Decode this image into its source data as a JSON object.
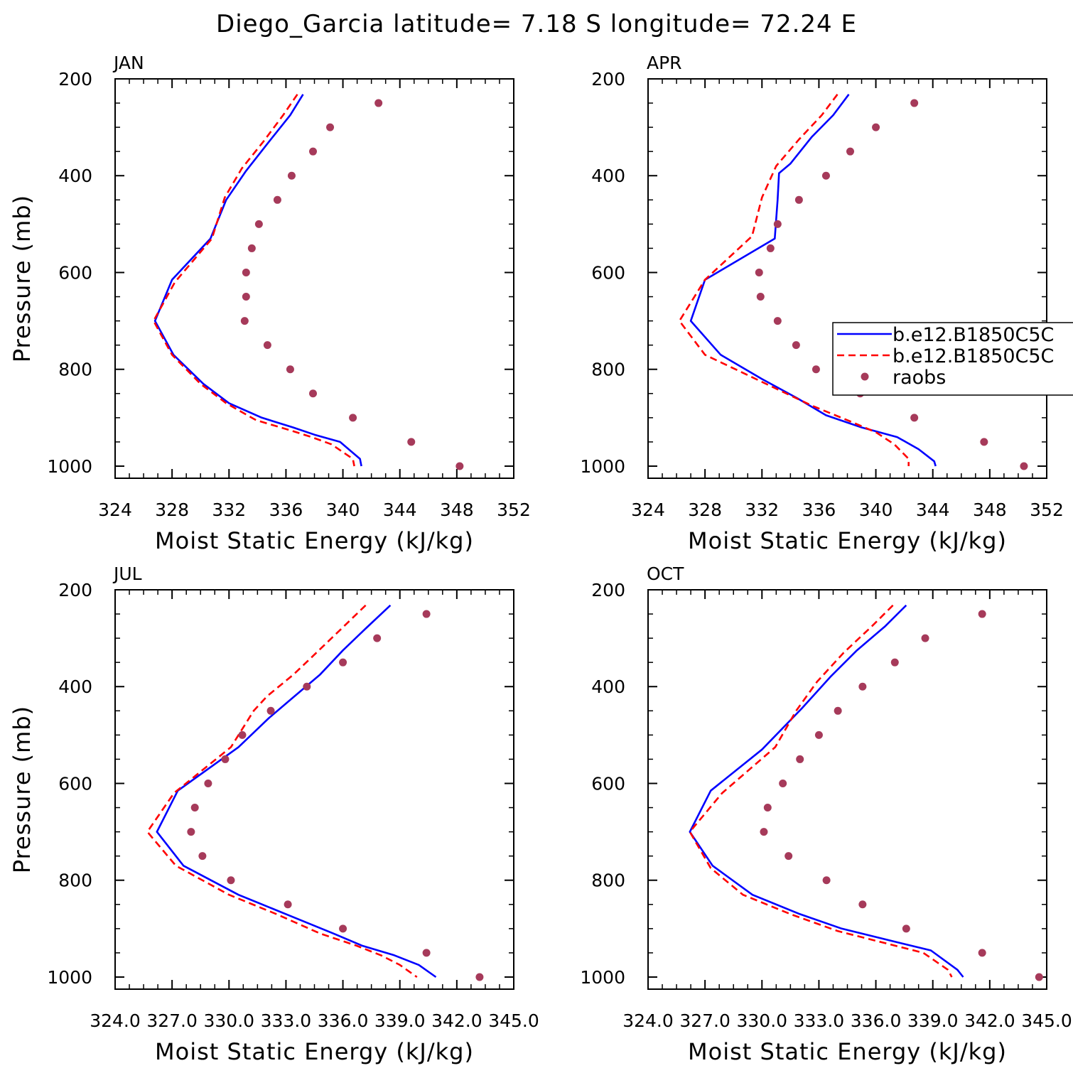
{
  "figure": {
    "title": "Diego_Garcia  latitude= 7.18 S longitude= 72.24 E"
  },
  "legend": {
    "entries": [
      {
        "label": "b.e12.B1850C5C",
        "style": "solid",
        "color": "#0000ff"
      },
      {
        "label": "b.e12.B1850C5C",
        "style": "dashed",
        "color": "#ff0000"
      },
      {
        "label": "raobs",
        "style": "marker",
        "color": "#a63a5a"
      }
    ]
  },
  "colors": {
    "model_solid": "#0000ff",
    "model_dashed": "#ff0000",
    "raobs": "#a63a5a"
  },
  "chart_data": [
    {
      "type": "line",
      "panel": "JAN",
      "xlabel": "Moist Static Energy (kJ/kg)",
      "ylabel": "Pressure (mb)",
      "xlim": [
        324,
        352
      ],
      "ylim": [
        200,
        1025
      ],
      "y_inverted": true,
      "x_ticks": [
        324,
        328,
        332,
        336,
        340,
        344,
        348,
        352
      ],
      "x_tick_labels": [
        "324",
        "328",
        "332",
        "336",
        "340",
        "344",
        "348",
        "352"
      ],
      "y_ticks": [
        200,
        400,
        600,
        800,
        1000
      ],
      "y_tick_labels": [
        "200",
        "400",
        "600",
        "800",
        "1000"
      ],
      "series": [
        {
          "name": "b.e12.B1850C5C",
          "style": "solid",
          "x": [
            337.2,
            336.3,
            334.8,
            333.2,
            331.8,
            330.7,
            328.0,
            326.8,
            328.1,
            330.2,
            332.0,
            334.3,
            336.5,
            338.0,
            339.8,
            341.2,
            341.3
          ],
          "y": [
            232,
            275,
            330,
            390,
            450,
            530,
            615,
            700,
            770,
            830,
            870,
            900,
            920,
            935,
            950,
            985,
            1000
          ]
        },
        {
          "name": "b.e12.B1850C5C",
          "style": "dashed",
          "x": [
            336.8,
            335.8,
            334.4,
            332.9,
            331.7,
            330.8,
            328.2,
            326.7,
            328.0,
            330.0,
            331.8,
            333.9,
            336.2,
            337.8,
            339.2,
            340.7,
            340.8
          ],
          "y": [
            232,
            275,
            330,
            385,
            445,
            530,
            620,
            700,
            770,
            830,
            870,
            905,
            925,
            940,
            955,
            985,
            1000
          ]
        },
        {
          "name": "raobs",
          "style": "marker",
          "x": [
            342.5,
            339.1,
            337.9,
            336.4,
            335.4,
            334.1,
            333.6,
            333.2,
            333.2,
            333.1,
            334.7,
            336.3,
            337.9,
            340.7,
            344.8,
            348.2
          ],
          "y": [
            250,
            300,
            350,
            400,
            450,
            500,
            550,
            600,
            650,
            700,
            750,
            800,
            850,
            900,
            950,
            1000
          ]
        }
      ]
    },
    {
      "type": "line",
      "panel": "APR",
      "xlabel": "Moist Static Energy (kJ/kg)",
      "ylabel": "",
      "xlim": [
        324,
        352
      ],
      "ylim": [
        200,
        1025
      ],
      "y_inverted": true,
      "x_ticks": [
        324,
        328,
        332,
        336,
        340,
        344,
        348,
        352
      ],
      "x_tick_labels": [
        "324",
        "328",
        "332",
        "336",
        "340",
        "344",
        "348",
        "352"
      ],
      "y_ticks": [
        200,
        400,
        600,
        800,
        1000
      ],
      "y_tick_labels": [
        "200",
        "400",
        "600",
        "800",
        "1000"
      ],
      "series": [
        {
          "name": "b.e12.B1850C5C",
          "style": "solid",
          "x": [
            338.1,
            337.0,
            335.5,
            334.0,
            333.2,
            333.1,
            332.9,
            328.0,
            327.0,
            329.1,
            332.0,
            334.5,
            336.5,
            339.0,
            341.5,
            343.0,
            344.1,
            344.2
          ],
          "y": [
            232,
            275,
            320,
            375,
            395,
            450,
            530,
            615,
            700,
            770,
            820,
            860,
            895,
            920,
            940,
            965,
            990,
            1000
          ]
        },
        {
          "name": "b.e12.B1850C5C",
          "style": "dashed",
          "x": [
            337.3,
            336.2,
            334.6,
            333.0,
            332.0,
            331.3,
            328.0,
            326.2,
            328.0,
            330.5,
            333.0,
            335.5,
            338.0,
            340.0,
            341.3,
            342.3,
            342.3
          ],
          "y": [
            232,
            275,
            325,
            380,
            445,
            525,
            615,
            700,
            770,
            805,
            840,
            875,
            905,
            930,
            955,
            985,
            1000
          ]
        },
        {
          "name": "raobs",
          "style": "marker",
          "x": [
            342.7,
            340.0,
            338.2,
            336.5,
            334.6,
            333.1,
            332.6,
            331.8,
            331.9,
            333.1,
            334.4,
            335.8,
            338.9,
            342.7,
            347.6,
            350.4
          ],
          "y": [
            250,
            300,
            350,
            400,
            450,
            500,
            550,
            600,
            650,
            700,
            750,
            800,
            850,
            900,
            950,
            1000
          ]
        }
      ]
    },
    {
      "type": "line",
      "panel": "JUL",
      "xlabel": "Moist Static Energy (kJ/kg)",
      "ylabel": "Pressure (mb)",
      "xlim": [
        324,
        345
      ],
      "ylim": [
        200,
        1025
      ],
      "y_inverted": true,
      "x_ticks": [
        324,
        327,
        330,
        333,
        336,
        339,
        342,
        345
      ],
      "x_tick_labels": [
        "324.0",
        "327.0",
        "330.0",
        "333.0",
        "336.0",
        "339.0",
        "342.0",
        "345.0"
      ],
      "y_ticks": [
        200,
        400,
        600,
        800,
        1000
      ],
      "y_tick_labels": [
        "200",
        "400",
        "600",
        "800",
        "1000"
      ],
      "series": [
        {
          "name": "b.e12.B1850C5C",
          "style": "solid",
          "x": [
            338.5,
            337.2,
            336.0,
            334.8,
            333.3,
            332.1,
            330.5,
            327.3,
            326.2,
            327.6,
            330.5,
            333.0,
            335.5,
            337.0,
            338.7,
            340.0,
            340.9
          ],
          "y": [
            232,
            280,
            325,
            375,
            425,
            465,
            525,
            615,
            700,
            770,
            830,
            870,
            910,
            935,
            955,
            975,
            1000
          ]
        },
        {
          "name": "b.e12.B1850C5C",
          "style": "dashed",
          "x": [
            337.2,
            335.8,
            334.6,
            333.4,
            332.0,
            331.3,
            330.1,
            327.1,
            325.7,
            327.2,
            330.0,
            332.5,
            334.8,
            336.7,
            338.0,
            339.0,
            339.9
          ],
          "y": [
            232,
            285,
            330,
            375,
            420,
            450,
            525,
            620,
            700,
            770,
            830,
            870,
            910,
            935,
            955,
            975,
            1000
          ]
        },
        {
          "name": "raobs",
          "style": "marker",
          "x": [
            340.4,
            337.8,
            336.0,
            334.1,
            332.2,
            330.7,
            329.8,
            328.9,
            328.2,
            328.0,
            328.6,
            330.1,
            333.1,
            336.0,
            340.4,
            343.2
          ],
          "y": [
            250,
            300,
            350,
            400,
            450,
            500,
            550,
            600,
            650,
            700,
            750,
            800,
            850,
            900,
            950,
            1000
          ]
        }
      ]
    },
    {
      "type": "line",
      "panel": "OCT",
      "xlabel": "Moist Static Energy (kJ/kg)",
      "ylabel": "",
      "xlim": [
        324,
        345
      ],
      "ylim": [
        200,
        1025
      ],
      "y_inverted": true,
      "x_ticks": [
        324,
        327,
        330,
        333,
        336,
        339,
        342,
        345
      ],
      "x_tick_labels": [
        "324.0",
        "327.0",
        "330.0",
        "333.0",
        "336.0",
        "339.0",
        "342.0",
        "345.0"
      ],
      "y_ticks": [
        200,
        400,
        600,
        800,
        1000
      ],
      "y_tick_labels": [
        "200",
        "400",
        "600",
        "800",
        "1000"
      ],
      "series": [
        {
          "name": "b.e12.B1850C5C",
          "style": "solid",
          "x": [
            337.6,
            336.5,
            335.0,
            333.6,
            332.1,
            330.0,
            327.3,
            326.2,
            327.4,
            329.5,
            332.0,
            334.2,
            336.8,
            338.9,
            340.3,
            340.6
          ],
          "y": [
            232,
            275,
            325,
            380,
            445,
            530,
            615,
            700,
            770,
            830,
            870,
            900,
            925,
            945,
            985,
            1000
          ]
        },
        {
          "name": "b.e12.B1850C5C",
          "style": "dashed",
          "x": [
            336.9,
            335.8,
            334.3,
            332.9,
            331.8,
            330.7,
            327.9,
            326.2,
            327.3,
            329.0,
            331.5,
            334.0,
            336.5,
            338.5,
            339.8,
            340.0
          ],
          "y": [
            232,
            275,
            330,
            390,
            450,
            525,
            620,
            700,
            775,
            830,
            870,
            905,
            930,
            950,
            985,
            1000
          ]
        },
        {
          "name": "raobs",
          "style": "marker",
          "x": [
            341.6,
            338.6,
            337.0,
            335.3,
            334.0,
            333.0,
            332.0,
            331.1,
            330.3,
            330.1,
            331.4,
            333.4,
            335.3,
            337.6,
            341.6,
            344.6
          ],
          "y": [
            250,
            300,
            350,
            400,
            450,
            500,
            550,
            600,
            650,
            700,
            750,
            800,
            850,
            900,
            950,
            1000
          ]
        }
      ]
    }
  ]
}
